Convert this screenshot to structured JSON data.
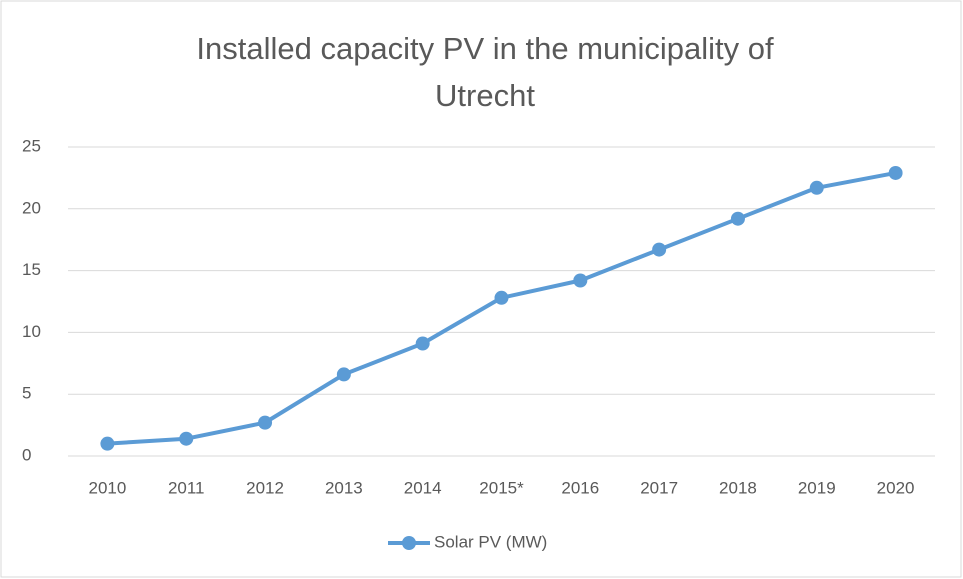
{
  "chart_data": {
    "type": "line",
    "title": "Installed capacity PV in the municipality of Utrecht",
    "categories": [
      "2010",
      "2011",
      "2012",
      "2013",
      "2014",
      "2015*",
      "2016",
      "2017",
      "2018",
      "2019",
      "2020"
    ],
    "series": [
      {
        "name": "Solar PV (MW)",
        "color": "#5b9bd5",
        "values": [
          1.0,
          1.4,
          2.7,
          6.6,
          9.1,
          12.8,
          14.2,
          16.7,
          19.2,
          21.7,
          22.9
        ]
      }
    ],
    "ylim": [
      0,
      25
    ],
    "yticks": [
      0,
      5,
      10,
      15,
      20,
      25
    ],
    "grid": true,
    "legend": "bottom"
  }
}
